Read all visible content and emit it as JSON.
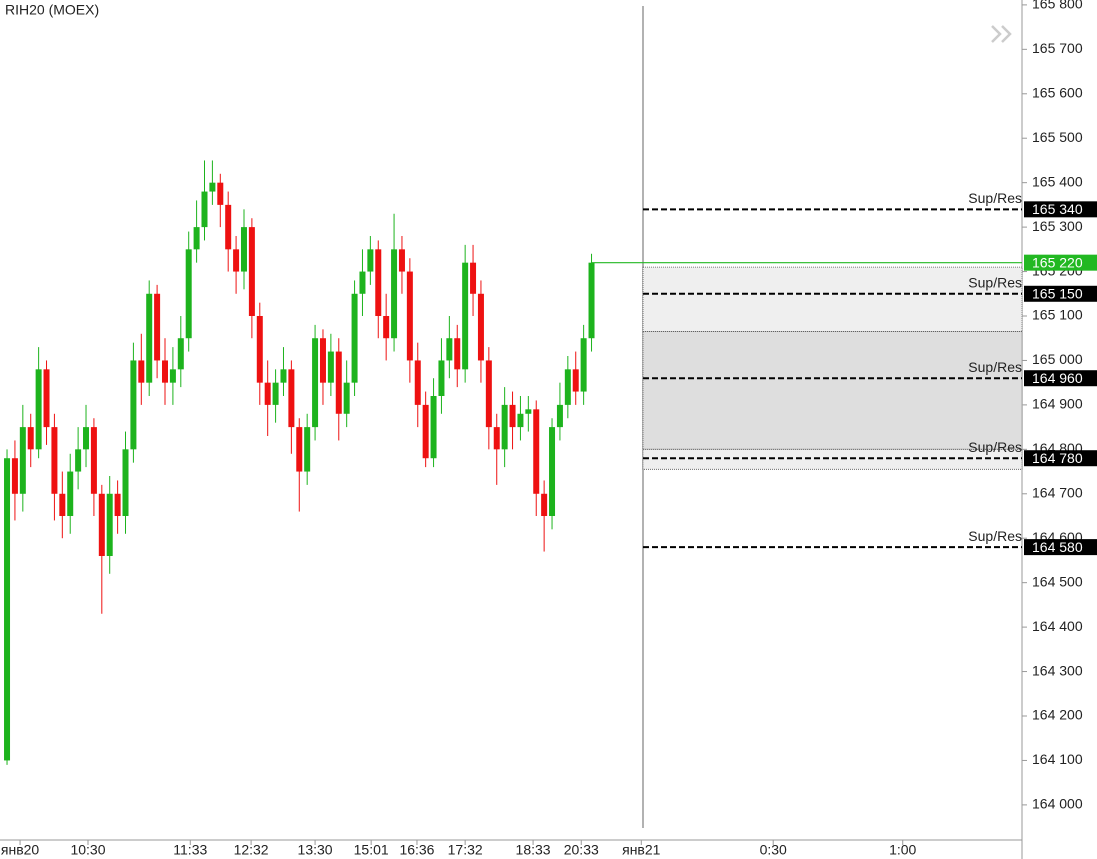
{
  "chart_data": {
    "type": "candlestick",
    "title": "RIH20 (MOEX)",
    "open": [
      164100,
      164780,
      164700,
      164850,
      164800,
      164980,
      164850,
      164700,
      164650,
      164750,
      164800,
      164850,
      164700,
      164560,
      164700,
      164650,
      164800,
      165000,
      164950,
      165150,
      165000,
      164950,
      164980,
      165050,
      165250,
      165300,
      165380,
      165400,
      165350,
      165250,
      165200,
      165300,
      165100,
      164950,
      164900,
      164950,
      164980,
      164850,
      164750,
      164850,
      165050,
      164950,
      165020,
      164880,
      164950,
      165150,
      165200,
      165250,
      165100,
      165050,
      165250,
      165200,
      165000,
      164900,
      164780,
      164920,
      165000,
      165050,
      164980,
      165220,
      165150,
      165000,
      164850,
      164800,
      164900,
      164850,
      164880,
      164890,
      164700,
      164650,
      164850,
      164900,
      164980,
      164930,
      165050
    ],
    "high": [
      164800,
      164820,
      164900,
      164880,
      165030,
      165000,
      164880,
      164750,
      164790,
      164850,
      164900,
      164870,
      164720,
      164740,
      164730,
      164840,
      165040,
      165060,
      165180,
      165170,
      165050,
      165030,
      165100,
      165290,
      165360,
      165450,
      165450,
      165420,
      165380,
      165280,
      165340,
      165320,
      165130,
      165000,
      164980,
      165030,
      165000,
      164870,
      164880,
      165080,
      165070,
      165060,
      165050,
      165000,
      165180,
      165250,
      165280,
      165270,
      165150,
      165330,
      165280,
      165230,
      165040,
      164930,
      164960,
      165050,
      165100,
      165080,
      165260,
      165260,
      165180,
      165030,
      164880,
      164940,
      164930,
      164920,
      164920,
      164910,
      164730,
      164870,
      164950,
      165010,
      165020,
      165080,
      165240
    ],
    "low": [
      164090,
      164640,
      164660,
      164760,
      164780,
      164810,
      164640,
      164600,
      164610,
      164710,
      164760,
      164650,
      164430,
      164520,
      164610,
      164610,
      164770,
      164900,
      164920,
      164960,
      164900,
      164900,
      164940,
      165020,
      165220,
      165270,
      165350,
      165300,
      165200,
      165150,
      165160,
      165050,
      164900,
      164830,
      164860,
      164920,
      164790,
      164660,
      164720,
      164820,
      164900,
      164920,
      164820,
      164850,
      164920,
      165100,
      165170,
      165050,
      165000,
      165020,
      165150,
      164950,
      164850,
      164760,
      164760,
      164880,
      164960,
      164940,
      164950,
      165100,
      164950,
      164800,
      164720,
      164760,
      164800,
      164820,
      164840,
      164650,
      164570,
      164620,
      164820,
      164870,
      164900,
      164900,
      165020
    ],
    "close": [
      164780,
      164700,
      164850,
      164800,
      164980,
      164850,
      164700,
      164650,
      164750,
      164800,
      164850,
      164700,
      164560,
      164700,
      164650,
      164800,
      165000,
      164950,
      165150,
      165000,
      164950,
      164980,
      165050,
      165250,
      165300,
      165380,
      165400,
      165350,
      165250,
      165200,
      165300,
      165100,
      164950,
      164900,
      164950,
      164980,
      164850,
      164750,
      164850,
      165050,
      164950,
      165020,
      164880,
      164950,
      165150,
      165200,
      165250,
      165100,
      165050,
      165250,
      165200,
      165000,
      164900,
      164780,
      164920,
      165000,
      165050,
      164980,
      165220,
      165150,
      165000,
      164850,
      164800,
      164900,
      164850,
      164880,
      164890,
      164700,
      164650,
      164850,
      164900,
      164980,
      164930,
      165050,
      165220
    ],
    "up_color": "#1db31d",
    "down_color": "#ee1111",
    "xlim": [
      -0.89,
      128.5
    ],
    "xticks": [
      {
        "value": 1.65,
        "label": "янв20"
      },
      {
        "value": 10.25,
        "label": "10:30"
      },
      {
        "value": 23.2,
        "label": "11:33"
      },
      {
        "value": 30.9,
        "label": "12:32"
      },
      {
        "value": 39,
        "label": "13:30"
      },
      {
        "value": 46.1,
        "label": "15:01"
      },
      {
        "value": 51.9,
        "label": "16:36"
      },
      {
        "value": 58,
        "label": "17:32"
      },
      {
        "value": 66.6,
        "label": "18:33"
      },
      {
        "value": 72.7,
        "label": "20:33"
      },
      {
        "value": 80.3,
        "label": "янв21"
      },
      {
        "value": 97,
        "label": "0:30"
      },
      {
        "value": 113.4,
        "label": "1:00"
      }
    ],
    "ylim": [
      163921,
      165811
    ],
    "yticks": [
      {
        "value": 165800,
        "label": "165 800"
      },
      {
        "value": 165700,
        "label": "165 700"
      },
      {
        "value": 165600,
        "label": "165 600"
      },
      {
        "value": 165500,
        "label": "165 500"
      },
      {
        "value": 165400,
        "label": "165 400"
      },
      {
        "value": 165300,
        "label": "165 300"
      },
      {
        "value": 165200,
        "label": "165 200"
      },
      {
        "value": 165100,
        "label": "165 100"
      },
      {
        "value": 165000,
        "label": "165 000"
      },
      {
        "value": 164900,
        "label": "164 900"
      },
      {
        "value": 164800,
        "label": "164 800"
      },
      {
        "value": 164700,
        "label": "164 700"
      },
      {
        "value": 164600,
        "label": "164 600"
      },
      {
        "value": 164500,
        "label": "164 500"
      },
      {
        "value": 164400,
        "label": "164 400"
      },
      {
        "value": 164300,
        "label": "164 300"
      },
      {
        "value": 164200,
        "label": "164 200"
      },
      {
        "value": 164100,
        "label": "164 100"
      },
      {
        "value": 164000,
        "label": "164 000"
      }
    ],
    "zones": [
      {
        "from": 165210,
        "to": 165065,
        "color": "#efefef"
      },
      {
        "from": 165065,
        "to": 164800,
        "color": "#dedede"
      },
      {
        "from": 164800,
        "to": 164755,
        "color": "#efefef"
      }
    ],
    "levels": [
      {
        "value": 165340,
        "label": "165 340",
        "name": "Sup/Res"
      },
      {
        "value": 165150,
        "label": "165 150",
        "name": "Sup/Res"
      },
      {
        "value": 164960,
        "label": "164 960",
        "name": "Sup/Res"
      },
      {
        "value": 164780,
        "label": "164 780",
        "name": "Sup/Res"
      },
      {
        "value": 164580,
        "label": "164 580",
        "name": "Sup/Res"
      }
    ],
    "last": {
      "value": 165220,
      "label": "165 220",
      "color": "#22b822"
    }
  }
}
